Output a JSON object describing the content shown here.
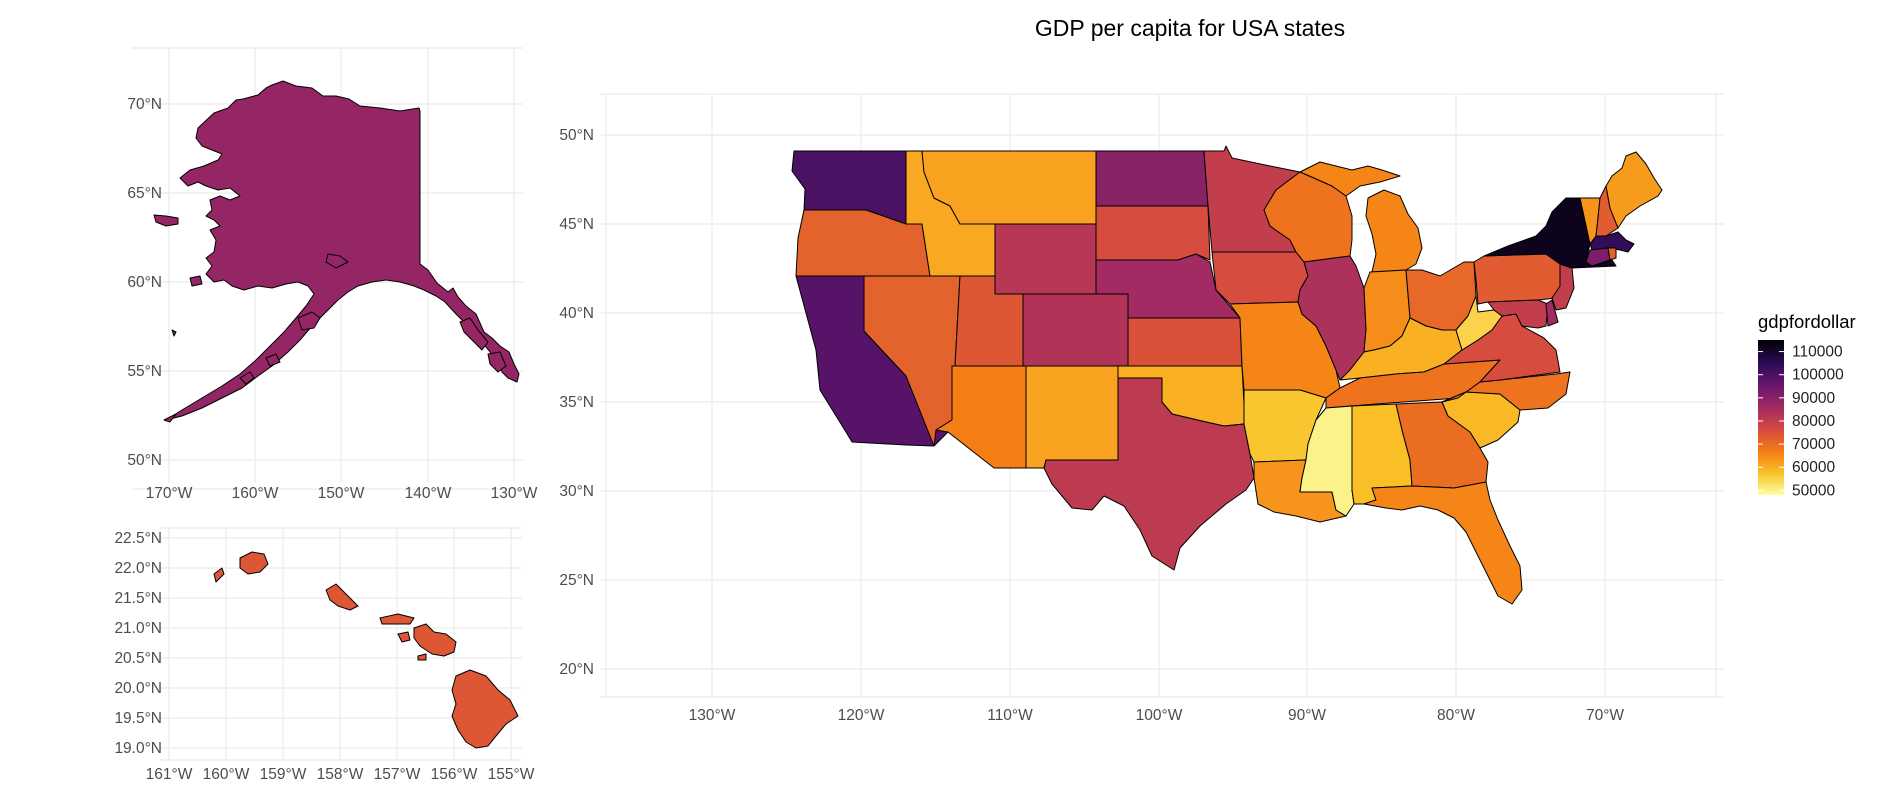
{
  "title": "GDP per capita for USA states",
  "legend": {
    "title": "gdpfordollar",
    "labels": [
      "110000",
      "100000",
      "90000",
      "80000",
      "70000",
      "60000",
      "50000"
    ],
    "values": [
      110000,
      100000,
      90000,
      80000,
      70000,
      60000,
      50000
    ],
    "min": 48000,
    "max": 115000
  },
  "palette": [
    "#fcffa4",
    "#fac228",
    "#f57d15",
    "#d44842",
    "#9f2a63",
    "#65156e",
    "#280b53",
    "#000004"
  ],
  "chart_data": [
    {
      "type": "map",
      "name": "alaska_inset",
      "xlabels": [
        "170°W",
        "160°W",
        "150°W",
        "140°W",
        "130°W"
      ],
      "ylabels": [
        "70°N",
        "65°N",
        "60°N",
        "55°N",
        "50°N"
      ],
      "xlim": [
        -172,
        -128
      ],
      "ylim": [
        49,
        73
      ],
      "states": [
        {
          "name": "Alaska",
          "value": 88000
        }
      ]
    },
    {
      "type": "map",
      "name": "hawaii_inset",
      "xlabels": [
        "161°W",
        "160°W",
        "159°W",
        "158°W",
        "157°W",
        "156°W",
        "155°W"
      ],
      "ylabels": [
        "22.5°N",
        "22.0°N",
        "21.5°N",
        "21.0°N",
        "20.5°N",
        "20.0°N",
        "19.5°N",
        "19.0°N"
      ],
      "xlim": [
        -161.3,
        -154.7
      ],
      "ylim": [
        18.8,
        22.7
      ],
      "states": [
        {
          "name": "Hawaii",
          "value": 74000
        }
      ]
    },
    {
      "type": "map",
      "name": "contiguous_usa",
      "xlabels": [
        "130°W",
        "120°W",
        "110°W",
        "100°W",
        "90°W",
        "80°W",
        "70°W"
      ],
      "ylabels": [
        "50°N",
        "45°N",
        "40°N",
        "35°N",
        "30°N",
        "25°N",
        "20°N"
      ],
      "xlim": [
        -131.5,
        -62
      ],
      "ylim": [
        19,
        51.5
      ],
      "states": [
        {
          "name": "Washington",
          "value": 100000
        },
        {
          "name": "Oregon",
          "value": 72000
        },
        {
          "name": "California",
          "value": 98000
        },
        {
          "name": "Nevada",
          "value": 72000
        },
        {
          "name": "Idaho",
          "value": 61000
        },
        {
          "name": "Montana",
          "value": 62000
        },
        {
          "name": "Wyoming",
          "value": 82000
        },
        {
          "name": "Utah",
          "value": 74000
        },
        {
          "name": "Arizona",
          "value": 67000
        },
        {
          "name": "Colorado",
          "value": 83000
        },
        {
          "name": "New Mexico",
          "value": 62000
        },
        {
          "name": "North Dakota",
          "value": 90000
        },
        {
          "name": "South Dakota",
          "value": 76000
        },
        {
          "name": "Nebraska",
          "value": 86000
        },
        {
          "name": "Kansas",
          "value": 75000
        },
        {
          "name": "Oklahoma",
          "value": 60000
        },
        {
          "name": "Texas",
          "value": 81000
        },
        {
          "name": "Minnesota",
          "value": 80000
        },
        {
          "name": "Iowa",
          "value": 76000
        },
        {
          "name": "Missouri",
          "value": 66000
        },
        {
          "name": "Arkansas",
          "value": 57000
        },
        {
          "name": "Louisiana",
          "value": 64000
        },
        {
          "name": "Wisconsin",
          "value": 69000
        },
        {
          "name": "Illinois",
          "value": 84000
        },
        {
          "name": "Mississippi",
          "value": 50000
        },
        {
          "name": "Michigan",
          "value": 66000
        },
        {
          "name": "Indiana",
          "value": 65000
        },
        {
          "name": "Kentucky",
          "value": 60000
        },
        {
          "name": "Tennessee",
          "value": 69000
        },
        {
          "name": "Alabama",
          "value": 58000
        },
        {
          "name": "Ohio",
          "value": 71000
        },
        {
          "name": "West Virginia",
          "value": 55000
        },
        {
          "name": "Georgia",
          "value": 70000
        },
        {
          "name": "Florida",
          "value": 66000
        },
        {
          "name": "South Carolina",
          "value": 59000
        },
        {
          "name": "North Carolina",
          "value": 69000
        },
        {
          "name": "Virginia",
          "value": 76000
        },
        {
          "name": "Pennsylvania",
          "value": 73000
        },
        {
          "name": "Maryland",
          "value": 80000
        },
        {
          "name": "Delaware",
          "value": 86000
        },
        {
          "name": "New Jersey",
          "value": 80000
        },
        {
          "name": "New York",
          "value": 112000
        },
        {
          "name": "Connecticut",
          "value": 92000
        },
        {
          "name": "Rhode Island",
          "value": 72000
        },
        {
          "name": "Massachusetts",
          "value": 104000
        },
        {
          "name": "Vermont",
          "value": 64000
        },
        {
          "name": "New Hampshire",
          "value": 73000
        },
        {
          "name": "Maine",
          "value": 63000
        }
      ]
    }
  ]
}
